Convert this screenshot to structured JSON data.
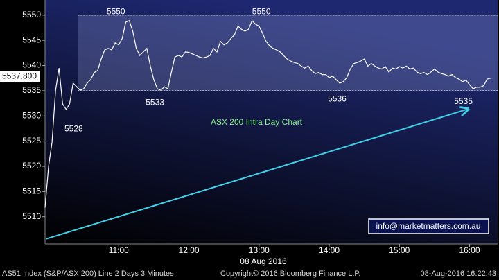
{
  "chart_data": {
    "type": "line",
    "title": "ASX 200 Intra Day Chart",
    "xlabel": "08 Aug 2016",
    "x": [
      597,
      600,
      603,
      606,
      609,
      612,
      615,
      618,
      621,
      624,
      627,
      630,
      633,
      636,
      639,
      642,
      645,
      648,
      651,
      654,
      657,
      660,
      663,
      666,
      669,
      672,
      675,
      678,
      681,
      684,
      687,
      690,
      693,
      696,
      699,
      702,
      705,
      708,
      711,
      714,
      717,
      720,
      723,
      726,
      729,
      732,
      735,
      738,
      741,
      744,
      747,
      750,
      753,
      756,
      759,
      762,
      765,
      768,
      771,
      774,
      777,
      780,
      783,
      786,
      789,
      792,
      795,
      798,
      801,
      804,
      807,
      810,
      813,
      816,
      819,
      822,
      825,
      828,
      831,
      834,
      837,
      840,
      843,
      846,
      849,
      852,
      855,
      858,
      861,
      864,
      867,
      870,
      873,
      876,
      879,
      882,
      885,
      888,
      891,
      894,
      897,
      900,
      903,
      906,
      909,
      912,
      915,
      918,
      921,
      924,
      927,
      930,
      933,
      936,
      939,
      942,
      945,
      948,
      951,
      954,
      957,
      960,
      963,
      966,
      969,
      972,
      975,
      978
    ],
    "values": [
      5511.8,
      5520.0,
      5524.8,
      5535.1,
      5539.5,
      5532.4,
      5531.3,
      5532.4,
      5536.5,
      5535.8,
      5535.1,
      5535.4,
      5536.5,
      5537.2,
      5538.6,
      5539.0,
      5541.3,
      5543.1,
      5543.4,
      5543.1,
      5544.5,
      5544.1,
      5545.4,
      5548.6,
      5548.9,
      5546.8,
      5543.4,
      5542.0,
      5542.7,
      5543.4,
      5539.9,
      5537.2,
      5535.4,
      5535.1,
      5535.8,
      5535.4,
      5538.6,
      5541.7,
      5542.0,
      5541.7,
      5542.7,
      5542.6,
      5542.3,
      5542.0,
      5541.7,
      5541.5,
      5541.7,
      5542.0,
      5543.4,
      5542.7,
      5544.8,
      5544.1,
      5544.5,
      5545.4,
      5546.1,
      5547.8,
      5547.2,
      5546.8,
      5547.2,
      5548.9,
      5548.2,
      5547.8,
      5546.4,
      5544.8,
      5543.9,
      5543.4,
      5543.1,
      5542.7,
      5542.0,
      5541.3,
      5540.9,
      5540.6,
      5540.4,
      5539.9,
      5539.5,
      5539.9,
      5539.0,
      5538.4,
      5538.6,
      5538.2,
      5538.2,
      5537.6,
      5537.9,
      5537.2,
      5536.5,
      5536.8,
      5537.6,
      5539.3,
      5540.4,
      5540.6,
      5540.9,
      5541.3,
      5539.9,
      5540.4,
      5539.9,
      5539.5,
      5539.3,
      5539.8,
      5538.7,
      5539.5,
      5539.3,
      5539.8,
      5539.5,
      5539.9,
      5539.3,
      5539.5,
      5538.7,
      5538.4,
      5538.6,
      5538.2,
      5538.7,
      5539.3,
      5538.7,
      5538.4,
      5538.2,
      5537.9,
      5538.2,
      5537.6,
      5537.3,
      5536.8,
      5537.1,
      5536.2,
      5535.4,
      5535.7,
      5535.7,
      5536.0,
      5537.3,
      5537.5
    ],
    "color": "#ffffff",
    "xlim": [
      597,
      984
    ],
    "ylim": [
      5504.6,
      5553.0
    ],
    "xticks": [
      {
        "value": 660,
        "label": "11:00"
      },
      {
        "value": 720,
        "label": "12:00"
      },
      {
        "value": 780,
        "label": "13:00"
      },
      {
        "value": 840,
        "label": "14:00"
      },
      {
        "value": 900,
        "label": "15:00"
      },
      {
        "value": 960,
        "label": "16:00"
      }
    ],
    "yticks": [
      5510,
      5515,
      5520,
      5525,
      5530,
      5535,
      5540,
      5545,
      5550
    ],
    "last_value": 5537.8,
    "last_label": "5537.800",
    "band": [
      5535,
      5550
    ],
    "band_start": 625,
    "trendline": {
      "x": [
        598,
        959
      ],
      "y": [
        5505.6,
        5531.4
      ],
      "color": "#3fd0e8"
    },
    "annotations": [
      {
        "text": "5550",
        "x": 657.6,
        "y": 5550.6
      },
      {
        "text": "5550",
        "x": 782,
        "y": 5550.6
      },
      {
        "text": "5533",
        "x": 691,
        "y": 5532.6
      },
      {
        "text": "5528",
        "x": 621.5,
        "y": 5527.4
      },
      {
        "text": "5536",
        "x": 846.8,
        "y": 5533.3
      },
      {
        "text": "5535",
        "x": 954.7,
        "y": 5532.8
      }
    ],
    "watermark": "info@marketmatters.com.au"
  },
  "footer": {
    "left": "AS51 Index (S&P/ASX 200) Line 2 Days 3 Minutes",
    "middle": "Copyright© 2016 Bloomberg Finance L.P.",
    "right": "08-Aug-2016 16:22:43"
  }
}
